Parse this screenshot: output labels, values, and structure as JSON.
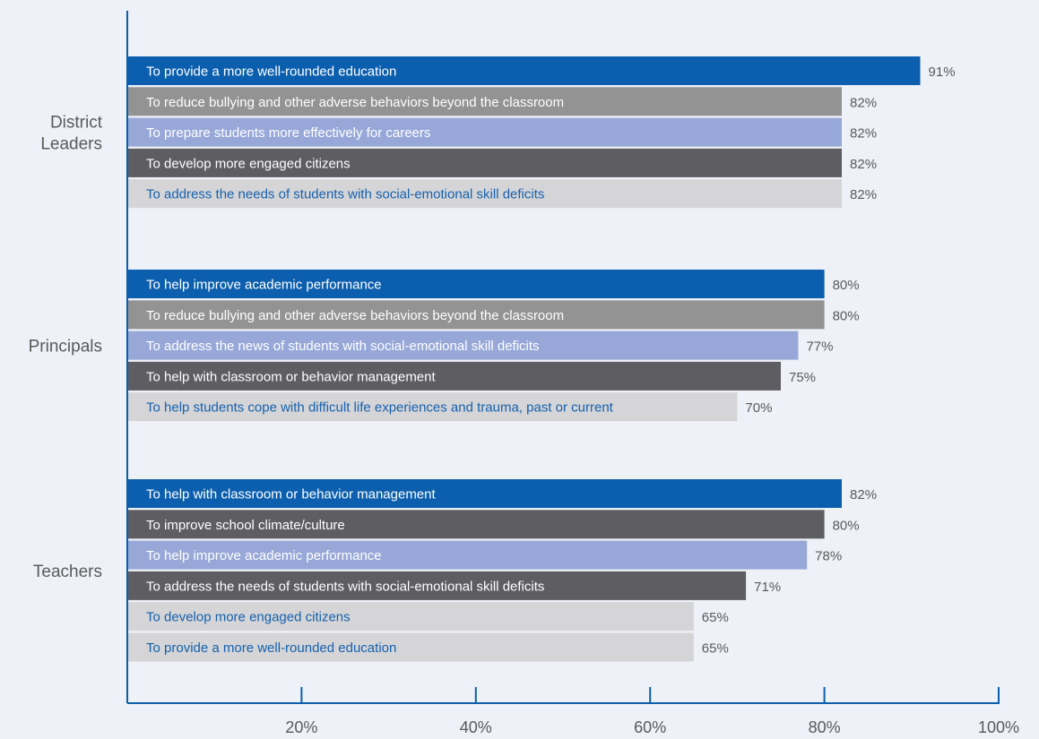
{
  "chart_data": {
    "type": "bar",
    "orientation": "horizontal",
    "xlim": [
      0,
      100
    ],
    "x_ticks": [
      "20%",
      "40%",
      "60%",
      "80%",
      "100%"
    ],
    "grid": false,
    "groups": [
      {
        "name_lines": [
          "District",
          "Leaders"
        ],
        "bars": [
          {
            "label": "To provide a more well-rounded education",
            "value": 91,
            "value_label": "91%",
            "color": "#0b5fae",
            "text_color": "#ffffff"
          },
          {
            "label": "To reduce bullying and other adverse behaviors beyond the classroom",
            "value": 82,
            "value_label": "82%",
            "color": "#939393",
            "text_color": "#ffffff"
          },
          {
            "label": "To prepare students more effectively for careers",
            "value": 82,
            "value_label": "82%",
            "color": "#97a8d8",
            "text_color": "#ffffff"
          },
          {
            "label": "To develop more engaged citizens",
            "value": 82,
            "value_label": "82%",
            "color": "#5e5e62",
            "text_color": "#ffffff"
          },
          {
            "label": "To address the needs of students with social-emotional skill deficits",
            "value": 82,
            "value_label": "82%",
            "color": "#d5d5d7",
            "text_color": "#1560ad"
          }
        ]
      },
      {
        "name_lines": [
          "Principals"
        ],
        "bars": [
          {
            "label": "To help improve academic performance",
            "value": 80,
            "value_label": "80%",
            "color": "#0b5fae",
            "text_color": "#ffffff"
          },
          {
            "label": "To reduce bullying and other adverse behaviors beyond the classroom",
            "value": 80,
            "value_label": "80%",
            "color": "#939393",
            "text_color": "#ffffff"
          },
          {
            "label": "To address the news of students with social-emotional skill deficits",
            "value": 77,
            "value_label": "77%",
            "color": "#97a8d8",
            "text_color": "#ffffff"
          },
          {
            "label": "To help with classroom or behavior management",
            "value": 75,
            "value_label": "75%",
            "color": "#5e5e62",
            "text_color": "#ffffff"
          },
          {
            "label": "To help students cope with difficult life experiences and trauma, past or current",
            "value": 70,
            "value_label": "70%",
            "color": "#d5d5d7",
            "text_color": "#1560ad"
          }
        ]
      },
      {
        "name_lines": [
          "Teachers"
        ],
        "bars": [
          {
            "label": "To help with classroom or behavior management",
            "value": 82,
            "value_label": "82%",
            "color": "#0b5fae",
            "text_color": "#ffffff"
          },
          {
            "label": "To improve school climate/culture",
            "value": 80,
            "value_label": "80%",
            "color": "#5e5e62",
            "text_color": "#ffffff"
          },
          {
            "label": "To help improve academic performance",
            "value": 78,
            "value_label": "78%",
            "color": "#97a8d8",
            "text_color": "#ffffff"
          },
          {
            "label": "To address the needs of students with social-emotional skill deficits",
            "value": 71,
            "value_label": "71%",
            "color": "#5e5e62",
            "text_color": "#ffffff"
          },
          {
            "label": "To develop more engaged citizens",
            "value": 65,
            "value_label": "65%",
            "color": "#d5d5d7",
            "text_color": "#1560ad"
          },
          {
            "label": "To provide a more well-rounded education",
            "value": 65,
            "value_label": "65%",
            "color": "#d5d5d7",
            "text_color": "#1560ad"
          }
        ]
      }
    ],
    "axis_color": "#0b5fae"
  }
}
